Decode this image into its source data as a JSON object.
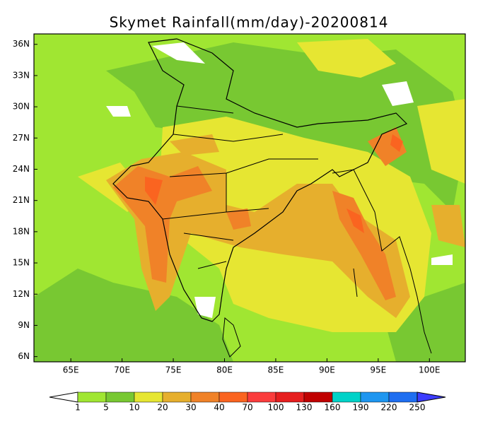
{
  "chart_data": {
    "type": "map",
    "title": "Skymet Rainfall(mm/day)-20200814",
    "xlim": [
      61.4,
      103.5
    ],
    "ylim": [
      5.5,
      37
    ],
    "xticks": [
      {
        "value": 65,
        "label": "65E"
      },
      {
        "value": 70,
        "label": "70E"
      },
      {
        "value": 75,
        "label": "75E"
      },
      {
        "value": 80,
        "label": "80E"
      },
      {
        "value": 85,
        "label": "85E"
      },
      {
        "value": 90,
        "label": "90E"
      },
      {
        "value": 95,
        "label": "95E"
      },
      {
        "value": 100,
        "label": "100E"
      }
    ],
    "yticks": [
      {
        "value": 6,
        "label": "6N"
      },
      {
        "value": 9,
        "label": "9N"
      },
      {
        "value": 12,
        "label": "12N"
      },
      {
        "value": 15,
        "label": "15N"
      },
      {
        "value": 18,
        "label": "18N"
      },
      {
        "value": 21,
        "label": "21N"
      },
      {
        "value": 24,
        "label": "24N"
      },
      {
        "value": 27,
        "label": "27N"
      },
      {
        "value": 30,
        "label": "30N"
      },
      {
        "value": 33,
        "label": "33N"
      },
      {
        "value": 36,
        "label": "36N"
      }
    ],
    "colorbar": {
      "levels": [
        1,
        5,
        10,
        20,
        30,
        40,
        70,
        100,
        130,
        160,
        190,
        220,
        250
      ],
      "colors": [
        "#ffffff",
        "#a0e632",
        "#78c832",
        "#e6e632",
        "#e6af2d",
        "#f08228",
        "#fa6420",
        "#fa3c3c",
        "#e61e1e",
        "#c00000",
        "#00d2c8",
        "#1e96f0",
        "#1e6ef0",
        "#3c3cff"
      ]
    }
  }
}
